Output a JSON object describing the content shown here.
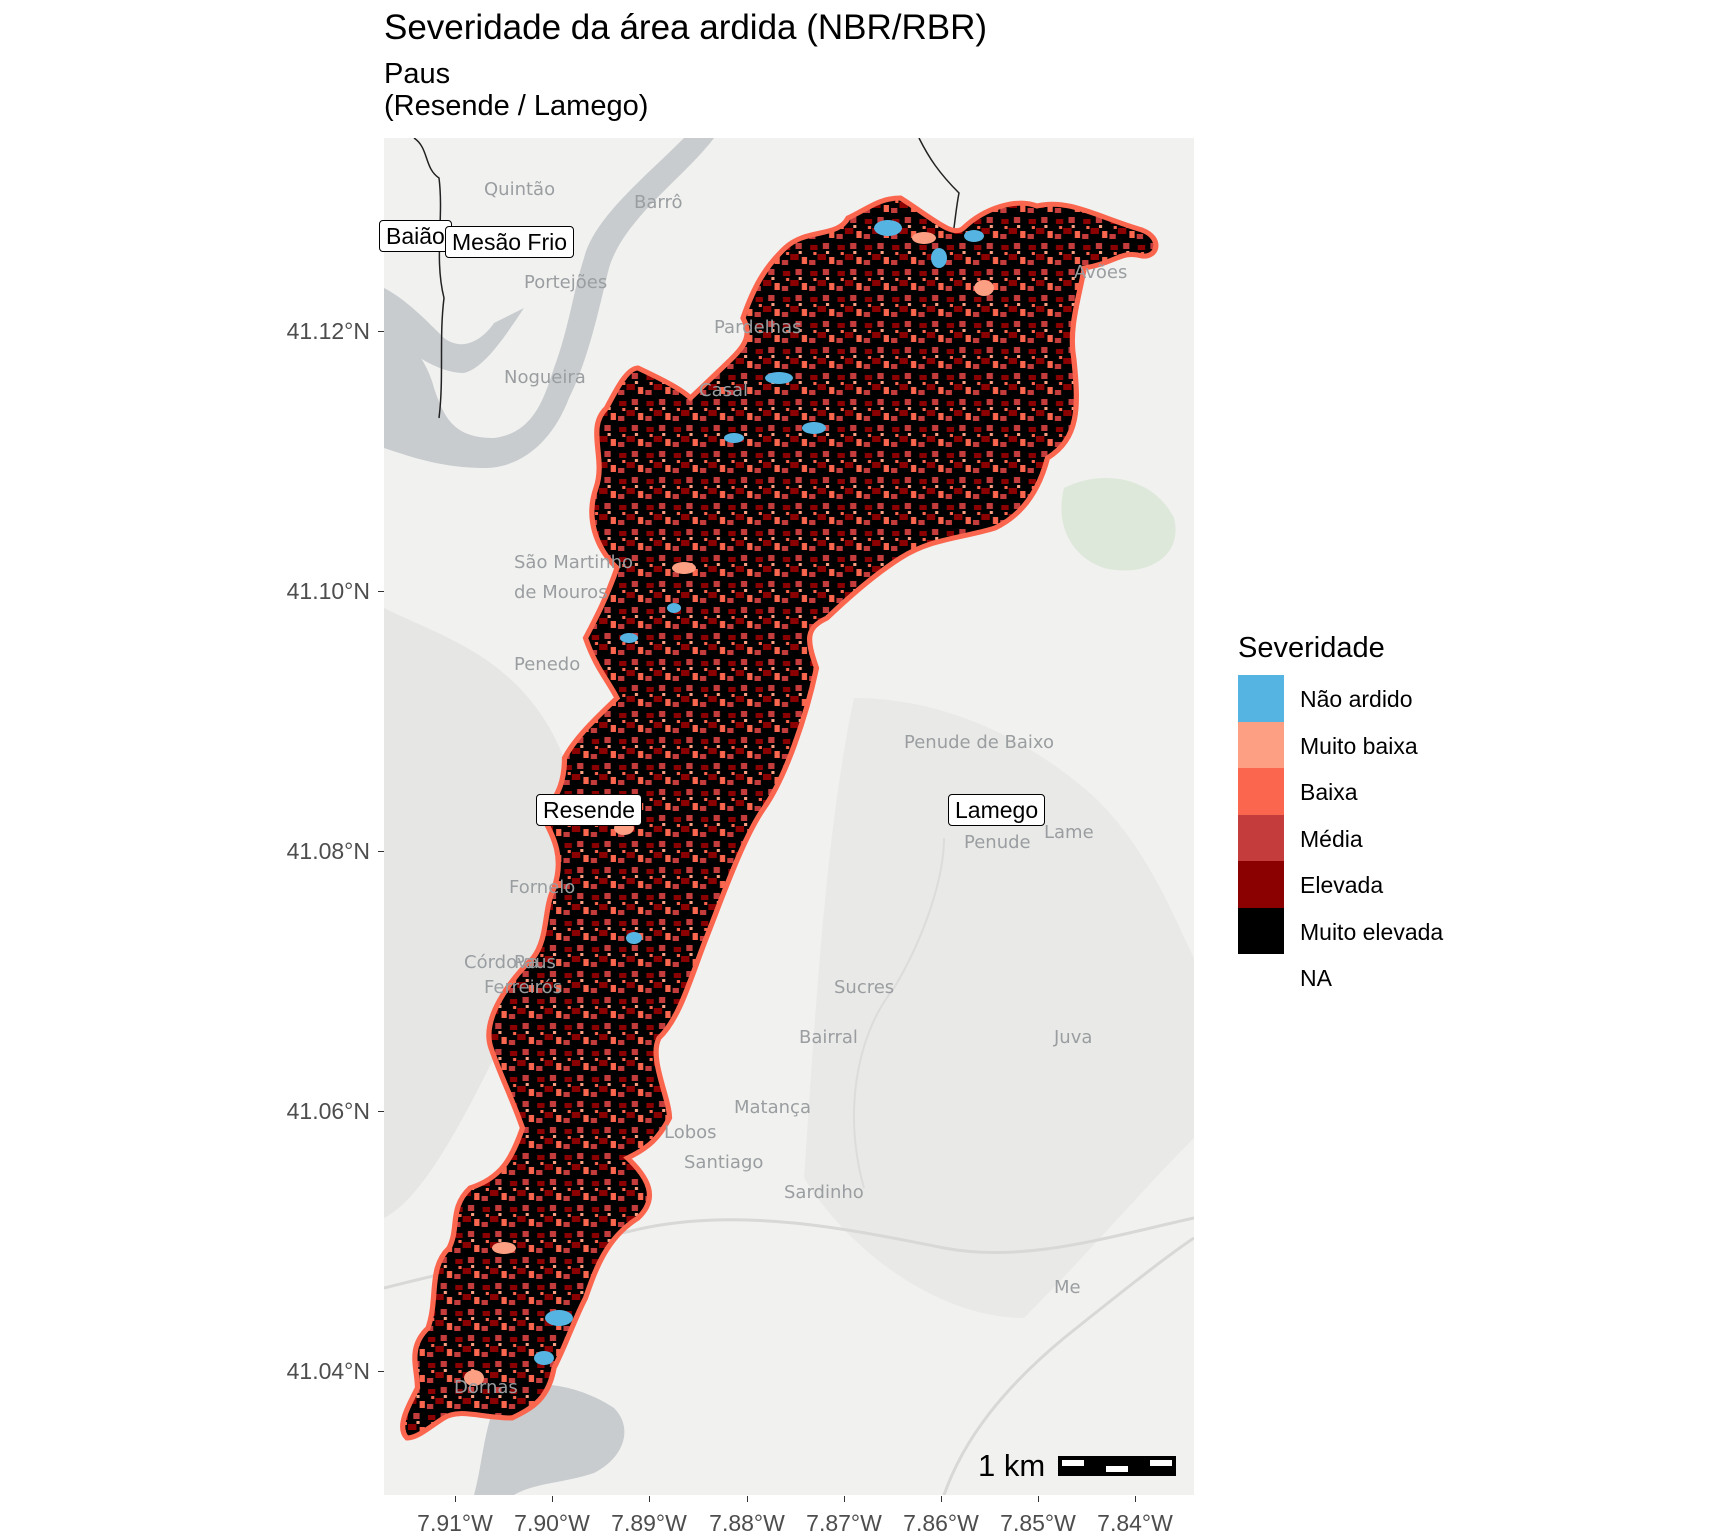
{
  "title": "Severidade da área ardida (NBR/RBR)",
  "subtitle_line1": "Paus",
  "subtitle_line2": "(Resende / Lamego)",
  "axes": {
    "y_ticks": [
      "41.12°N",
      "41.10°N",
      "41.08°N",
      "41.06°N",
      "41.04°N"
    ],
    "x_ticks": [
      "7.91°W",
      "7.90°W",
      "7.89°W",
      "7.88°W",
      "7.87°W",
      "7.86°W",
      "7.85°W",
      "7.84°W"
    ]
  },
  "municipality_labels": [
    "Baião",
    "Mesão Frio",
    "Resende",
    "Lamego"
  ],
  "basemap_places": [
    "Quintão",
    "Barrô",
    "Portejões",
    "Avões",
    "Pardelhas",
    "Nogueira",
    "Casal",
    "São Martinho",
    "de Mouros",
    "Penedo",
    "Penude de Baixo",
    "Penude",
    "Fornelo",
    "Córdova",
    "Paus",
    "Ferreirós",
    "Sucres",
    "Bairral",
    "Matança",
    "Lobos",
    "Santiago",
    "Sardinho",
    "Juva",
    "Lame",
    "Me",
    "Dornas"
  ],
  "scale_bar": "1 km",
  "legend": {
    "title": "Severidade",
    "items": [
      {
        "label": "Não ardido",
        "color": "#56B4E2"
      },
      {
        "label": "Muito baixa",
        "color": "#FC9F82"
      },
      {
        "label": "Baixa",
        "color": "#FB664F"
      },
      {
        "label": "Média",
        "color": "#C43C3C"
      },
      {
        "label": "Elevada",
        "color": "#8B0000"
      },
      {
        "label": "Muito elevada",
        "color": "#000000"
      },
      {
        "label": "NA",
        "color": "#FFFFFF"
      }
    ]
  },
  "colors": {
    "basemap_land": "#F1F1EF",
    "basemap_water": "#C8CCCF",
    "basemap_green": "#DDE8DA"
  }
}
